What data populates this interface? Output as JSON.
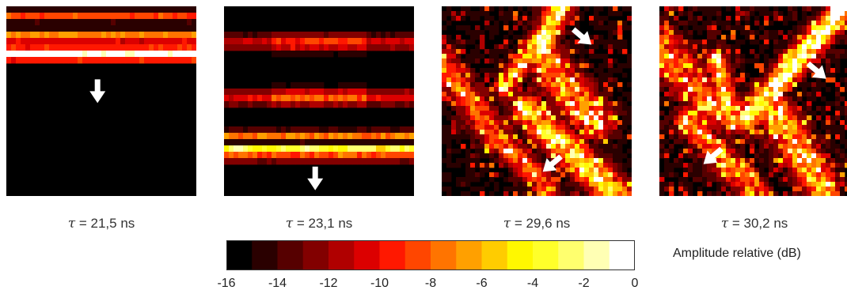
{
  "chart_data": {
    "type": "heatmap",
    "panels": [
      {
        "tau_symbol": "τ",
        "tau_text": "= 21,5 ns",
        "arrows": [
          {
            "x": 0.48,
            "y": 0.46,
            "dir": "down"
          }
        ]
      },
      {
        "tau_symbol": "τ",
        "tau_text": "= 23,1 ns",
        "arrows": [
          {
            "x": 0.48,
            "y": 0.92,
            "dir": "down"
          }
        ]
      },
      {
        "tau_symbol": "τ",
        "tau_text": "= 29,6 ns",
        "arrows": [
          {
            "x": 0.75,
            "y": 0.17,
            "dir": "down-right"
          },
          {
            "x": 0.57,
            "y": 0.84,
            "dir": "down-left"
          }
        ]
      },
      {
        "tau_symbol": "τ",
        "tau_text": "= 30,2 ns",
        "arrows": [
          {
            "x": 0.84,
            "y": 0.35,
            "dir": "down-right"
          },
          {
            "x": 0.27,
            "y": 0.8,
            "dir": "down-left"
          }
        ]
      }
    ],
    "colorbar": {
      "label": "Amplitude relative (dB)",
      "min": -16,
      "max": 0,
      "ticks": [
        "-16",
        "-14",
        "-12",
        "-10",
        "-8",
        "-6",
        "-4",
        "-2",
        "0"
      ],
      "colors": [
        "#000000",
        "#2a0000",
        "#560000",
        "#820000",
        "#b00000",
        "#dc0000",
        "#ff1800",
        "#ff4600",
        "#ff7400",
        "#ffa000",
        "#ffcc00",
        "#fff800",
        "#ffff2a",
        "#ffff6e",
        "#ffffb4",
        "#ffffff"
      ]
    }
  }
}
